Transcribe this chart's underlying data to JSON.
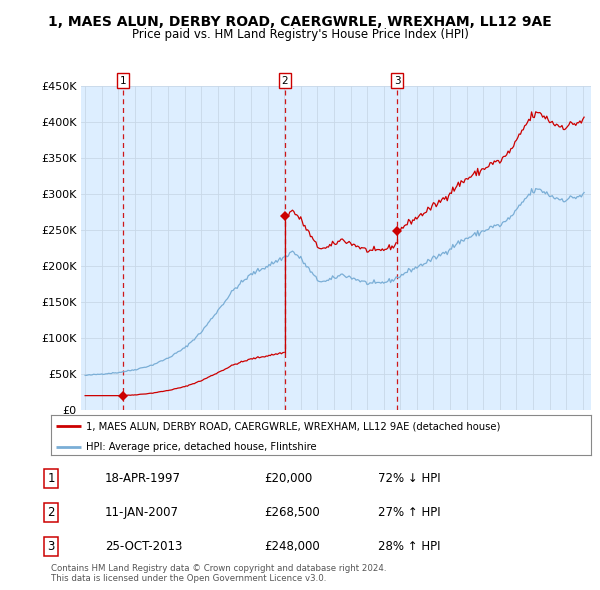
{
  "title_line1": "1, MAES ALUN, DERBY ROAD, CAERGWRLE, WREXHAM, LL12 9AE",
  "title_line2": "Price paid vs. HM Land Registry's House Price Index (HPI)",
  "sale_color": "#cc0000",
  "hpi_color": "#7aaed6",
  "vline_color": "#cc0000",
  "chart_bg": "#ddeeff",
  "ylim": [
    0,
    450000
  ],
  "yticks": [
    0,
    50000,
    100000,
    150000,
    200000,
    250000,
    300000,
    350000,
    400000,
    450000
  ],
  "ytick_labels": [
    "£0",
    "£50K",
    "£100K",
    "£150K",
    "£200K",
    "£250K",
    "£300K",
    "£350K",
    "£400K",
    "£450K"
  ],
  "xlim_start": 1994.75,
  "xlim_end": 2025.5,
  "transactions": [
    {
      "label": "1",
      "date_num": 1997.29,
      "price": 20000
    },
    {
      "label": "2",
      "date_num": 2007.04,
      "price": 268500
    },
    {
      "label": "3",
      "date_num": 2013.82,
      "price": 248000
    }
  ],
  "table_rows": [
    {
      "num": "1",
      "date": "18-APR-1997",
      "price": "£20,000",
      "hpi": "72% ↓ HPI"
    },
    {
      "num": "2",
      "date": "11-JAN-2007",
      "price": "£268,500",
      "hpi": "27% ↑ HPI"
    },
    {
      "num": "3",
      "date": "25-OCT-2013",
      "price": "£248,000",
      "hpi": "28% ↑ HPI"
    }
  ],
  "legend_line1": "1, MAES ALUN, DERBY ROAD, CAERGWRLE, WREXHAM, LL12 9AE (detached house)",
  "legend_line2": "HPI: Average price, detached house, Flintshire",
  "footnote": "Contains HM Land Registry data © Crown copyright and database right 2024.\nThis data is licensed under the Open Government Licence v3.0.",
  "background_color": "#ffffff",
  "grid_color": "#c8d8e8"
}
